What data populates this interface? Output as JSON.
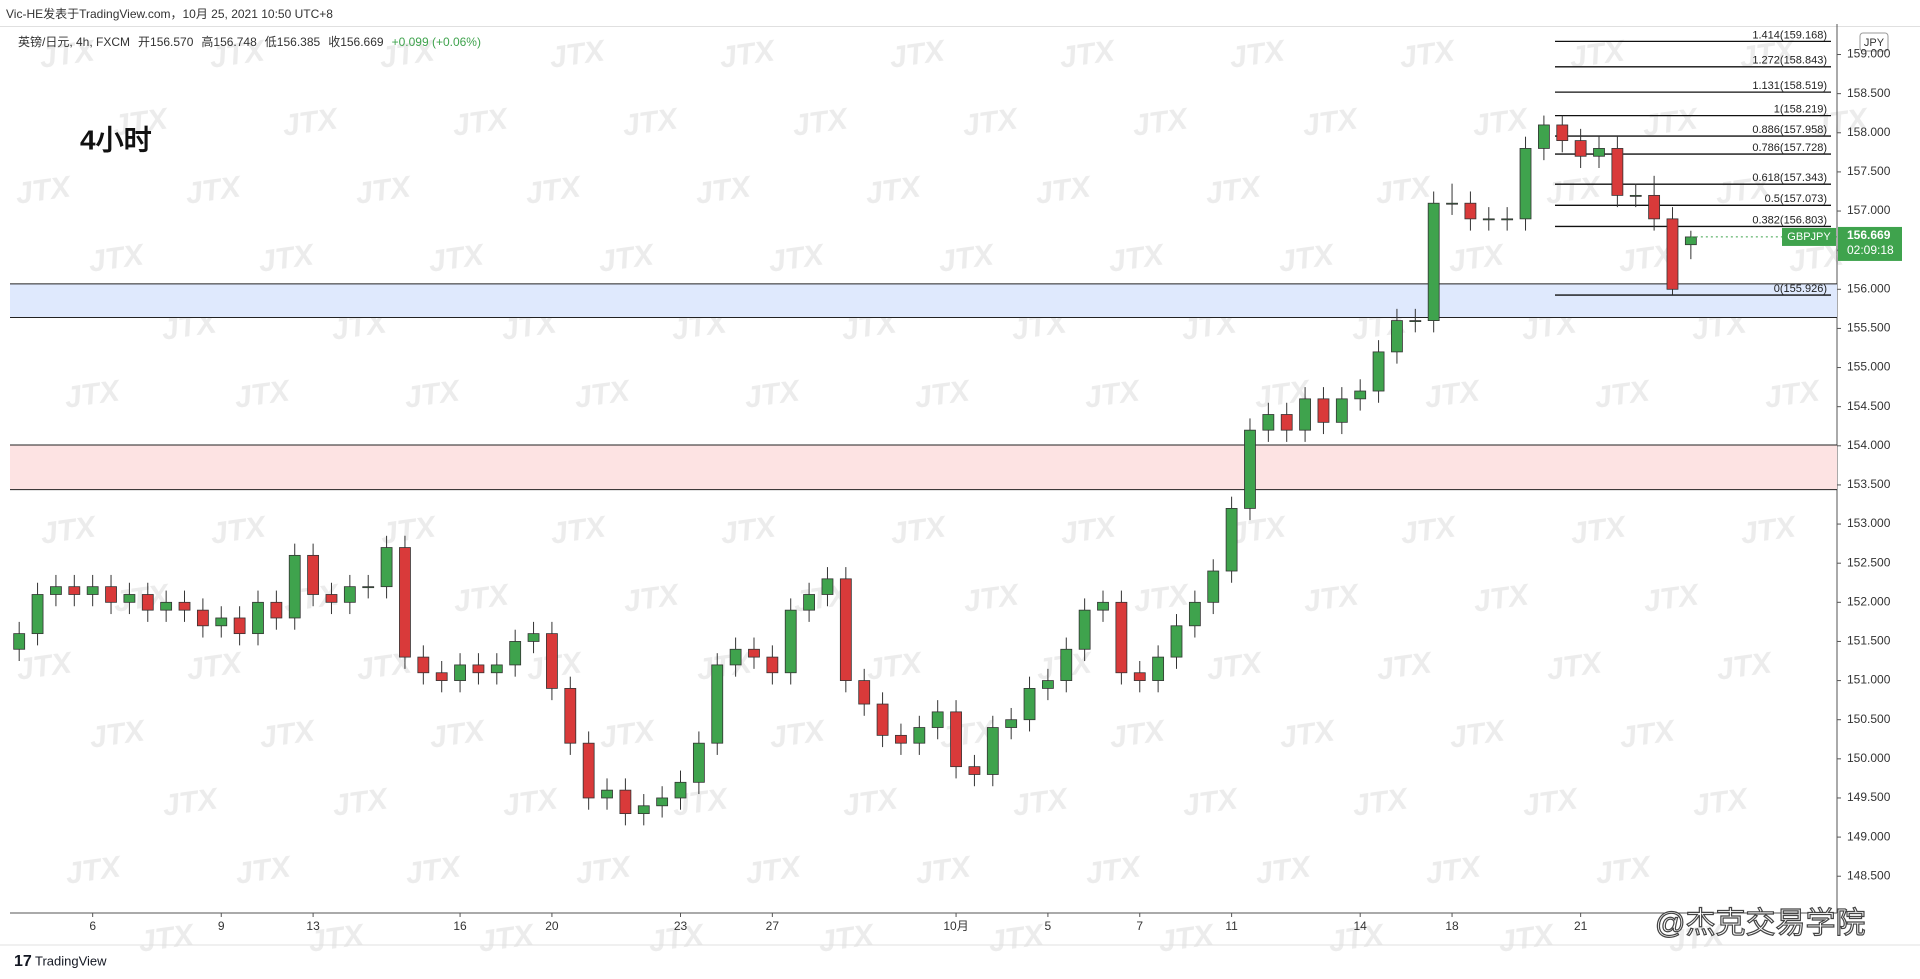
{
  "chart_data": {
    "type": "candlestick",
    "header": "Vic-HE发表于TradingView.com，10月 25, 2021 10:50 UTC+8",
    "symbol": "英镑/日元, 4h, FXCM",
    "header_items": [
      "开156.570",
      "高156.748",
      "低156.385",
      "收156.669",
      "+0.099 (+0.06%)"
    ],
    "annotation": "4小时",
    "currency": "JPY",
    "symbol_tag": "GBPJPY",
    "last_price_label": "156.669",
    "countdown": "02:09:18",
    "watermark": "JTX",
    "logo": "TradingView",
    "credit": "@杰克交易学院",
    "up_color": "#3fa34d",
    "down_color": "#d93a3a",
    "last_color": "#3fa34d",
    "grid": false,
    "categories": [
      null,
      null,
      null,
      null,
      "6",
      null,
      null,
      null,
      null,
      null,
      null,
      "9",
      null,
      null,
      null,
      null,
      "13",
      null,
      null,
      null,
      null,
      null,
      null,
      null,
      "16",
      null,
      null,
      null,
      null,
      "20",
      null,
      null,
      null,
      null,
      null,
      null,
      "23",
      null,
      null,
      null,
      null,
      "27",
      null,
      null,
      null,
      null,
      null,
      null,
      null,
      null,
      null,
      "10月",
      null,
      null,
      null,
      null,
      "5",
      null,
      null,
      null,
      null,
      "7",
      null,
      null,
      null,
      null,
      "11",
      null,
      null,
      null,
      null,
      null,
      null,
      "14",
      null,
      null,
      null,
      null,
      "18",
      null,
      null,
      null,
      null,
      null,
      null,
      "21",
      null,
      null,
      null,
      null,
      null,
      null
    ],
    "ohlc": {
      "open": [
        151.4,
        151.6,
        152.1,
        152.2,
        152.1,
        152.2,
        152.0,
        152.1,
        151.9,
        152.0,
        151.9,
        151.7,
        151.8,
        151.6,
        152.0,
        151.8,
        152.6,
        152.1,
        152.0,
        152.2,
        152.2,
        152.7,
        151.3,
        151.1,
        151.0,
        151.2,
        151.1,
        151.2,
        151.5,
        151.6,
        150.9,
        150.2,
        149.5,
        149.6,
        149.3,
        149.4,
        149.5,
        149.7,
        150.2,
        151.2,
        151.4,
        151.3,
        151.1,
        151.9,
        152.1,
        152.3,
        151.0,
        150.7,
        150.3,
        150.2,
        150.4,
        150.6,
        149.9,
        149.8,
        150.4,
        150.5,
        150.9,
        151.0,
        151.4,
        151.9,
        152.0,
        151.1,
        151.0,
        151.3,
        151.7,
        152.0,
        152.4,
        153.2,
        154.2,
        154.4,
        154.2,
        154.6,
        154.3,
        154.6,
        154.7,
        155.2,
        155.6,
        155.6,
        157.1,
        157.1,
        156.9,
        156.9,
        156.9,
        157.8,
        158.1,
        157.9,
        157.7,
        157.8,
        157.2,
        157.2,
        156.9,
        156.57
      ],
      "high": [
        151.75,
        152.25,
        152.35,
        152.35,
        152.35,
        152.35,
        152.25,
        152.25,
        152.15,
        152.15,
        152.05,
        151.95,
        151.95,
        152.15,
        152.15,
        152.75,
        152.75,
        152.25,
        152.35,
        152.35,
        152.85,
        152.85,
        151.45,
        151.25,
        151.35,
        151.35,
        151.35,
        151.65,
        151.75,
        151.75,
        151.05,
        150.35,
        149.75,
        149.75,
        149.55,
        149.65,
        149.85,
        150.35,
        151.35,
        151.55,
        151.55,
        151.45,
        152.05,
        152.25,
        152.45,
        152.45,
        151.15,
        150.85,
        150.45,
        150.55,
        150.75,
        150.75,
        150.05,
        150.55,
        150.65,
        151.05,
        151.15,
        151.55,
        152.05,
        152.15,
        152.15,
        151.25,
        151.45,
        151.85,
        152.15,
        152.55,
        153.35,
        154.35,
        154.55,
        154.55,
        154.75,
        154.75,
        154.75,
        154.85,
        155.35,
        155.75,
        155.75,
        157.25,
        157.35,
        157.25,
        157.05,
        157.05,
        157.95,
        158.22,
        158.22,
        158.05,
        157.95,
        157.95,
        157.35,
        157.45,
        157.05,
        156.748
      ],
      "low": [
        151.25,
        151.45,
        151.95,
        151.95,
        151.95,
        151.85,
        151.85,
        151.75,
        151.75,
        151.75,
        151.55,
        151.55,
        151.45,
        151.45,
        151.65,
        151.65,
        151.95,
        151.85,
        151.85,
        152.05,
        152.05,
        151.15,
        150.95,
        150.85,
        150.85,
        150.95,
        150.95,
        151.05,
        151.35,
        150.75,
        150.05,
        149.35,
        149.35,
        149.15,
        149.15,
        149.25,
        149.35,
        149.55,
        150.05,
        151.05,
        151.15,
        150.95,
        150.95,
        151.75,
        151.95,
        150.85,
        150.55,
        150.15,
        150.05,
        150.05,
        150.25,
        149.75,
        149.65,
        149.65,
        150.25,
        150.35,
        150.75,
        150.85,
        151.25,
        151.75,
        150.95,
        150.85,
        150.85,
        151.15,
        151.55,
        151.85,
        152.25,
        153.05,
        154.05,
        154.05,
        154.05,
        154.15,
        154.15,
        154.45,
        154.55,
        155.05,
        155.45,
        155.45,
        156.95,
        156.75,
        156.75,
        156.75,
        156.75,
        157.65,
        157.75,
        157.55,
        157.55,
        157.05,
        157.05,
        156.75,
        155.93,
        156.385
      ],
      "close": [
        151.6,
        152.1,
        152.2,
        152.1,
        152.2,
        152.0,
        152.1,
        151.9,
        152.0,
        151.9,
        151.7,
        151.8,
        151.6,
        152.0,
        151.8,
        152.6,
        152.1,
        152.0,
        152.2,
        152.2,
        152.7,
        151.3,
        151.1,
        151.0,
        151.2,
        151.1,
        151.2,
        151.5,
        151.6,
        150.9,
        150.2,
        149.5,
        149.6,
        149.3,
        149.4,
        149.5,
        149.7,
        150.2,
        151.2,
        151.4,
        151.3,
        151.1,
        151.9,
        152.1,
        152.3,
        151.0,
        150.7,
        150.3,
        150.2,
        150.4,
        150.6,
        149.9,
        149.8,
        150.4,
        150.5,
        150.9,
        151.0,
        151.4,
        151.9,
        152.0,
        151.1,
        151.0,
        151.3,
        151.7,
        152.0,
        152.4,
        153.2,
        154.2,
        154.4,
        154.2,
        154.6,
        154.3,
        154.6,
        154.7,
        155.2,
        155.6,
        155.6,
        157.1,
        157.1,
        156.9,
        156.9,
        156.9,
        157.8,
        158.1,
        157.9,
        157.7,
        157.8,
        157.2,
        157.2,
        156.9,
        156.0,
        156.669
      ]
    },
    "zones": [
      {
        "high": 156.07,
        "low": 155.64,
        "color": "#dfe9fd"
      },
      {
        "high": 154.01,
        "low": 153.44,
        "color": "#fde3e3"
      }
    ],
    "fib_levels": [
      {
        "value": 159.168,
        "label": "1.414(159.168)"
      },
      {
        "value": 158.843,
        "label": "1.272(158.843)"
      },
      {
        "value": 158.519,
        "label": "1.131(158.519)"
      },
      {
        "value": 158.219,
        "label": "1(158.219)"
      },
      {
        "value": 157.958,
        "label": "0.886(157.958)"
      },
      {
        "value": 157.728,
        "label": "0.786(157.728)"
      },
      {
        "value": 157.343,
        "label": "0.618(157.343)"
      },
      {
        "value": 157.073,
        "label": "0.5(157.073)"
      },
      {
        "value": 156.803,
        "label": "0.382(156.803)"
      },
      {
        "value": 155.926,
        "label": "0(155.926)"
      }
    ],
    "ylim": [
      148.03,
      159.39
    ],
    "yticks": [
      {
        "value": 148.5,
        "label": "148.500"
      },
      {
        "value": 149,
        "label": "149.000"
      },
      {
        "value": 149.5,
        "label": "149.500"
      },
      {
        "value": 150,
        "label": "150.000"
      },
      {
        "value": 150.5,
        "label": "150.500"
      },
      {
        "value": 151,
        "label": "151.000"
      },
      {
        "value": 151.5,
        "label": "151.500"
      },
      {
        "value": 152,
        "label": "152.000"
      },
      {
        "value": 152.5,
        "label": "152.500"
      },
      {
        "value": 153,
        "label": "153.000"
      },
      {
        "value": 153.5,
        "label": "153.500"
      },
      {
        "value": 154,
        "label": "154.000"
      },
      {
        "value": 154.5,
        "label": "154.500"
      },
      {
        "value": 155,
        "label": "155.000"
      },
      {
        "value": 155.5,
        "label": "155.500"
      },
      {
        "value": 156,
        "label": "156.000"
      },
      {
        "value": 156.5,
        "label": "156.500"
      },
      {
        "value": 157,
        "label": "157.000"
      },
      {
        "value": 157.5,
        "label": "157.500"
      },
      {
        "value": 158,
        "label": "158.000"
      },
      {
        "value": 158.5,
        "label": "158.500"
      },
      {
        "value": 159,
        "label": "159.000"
      }
    ]
  }
}
